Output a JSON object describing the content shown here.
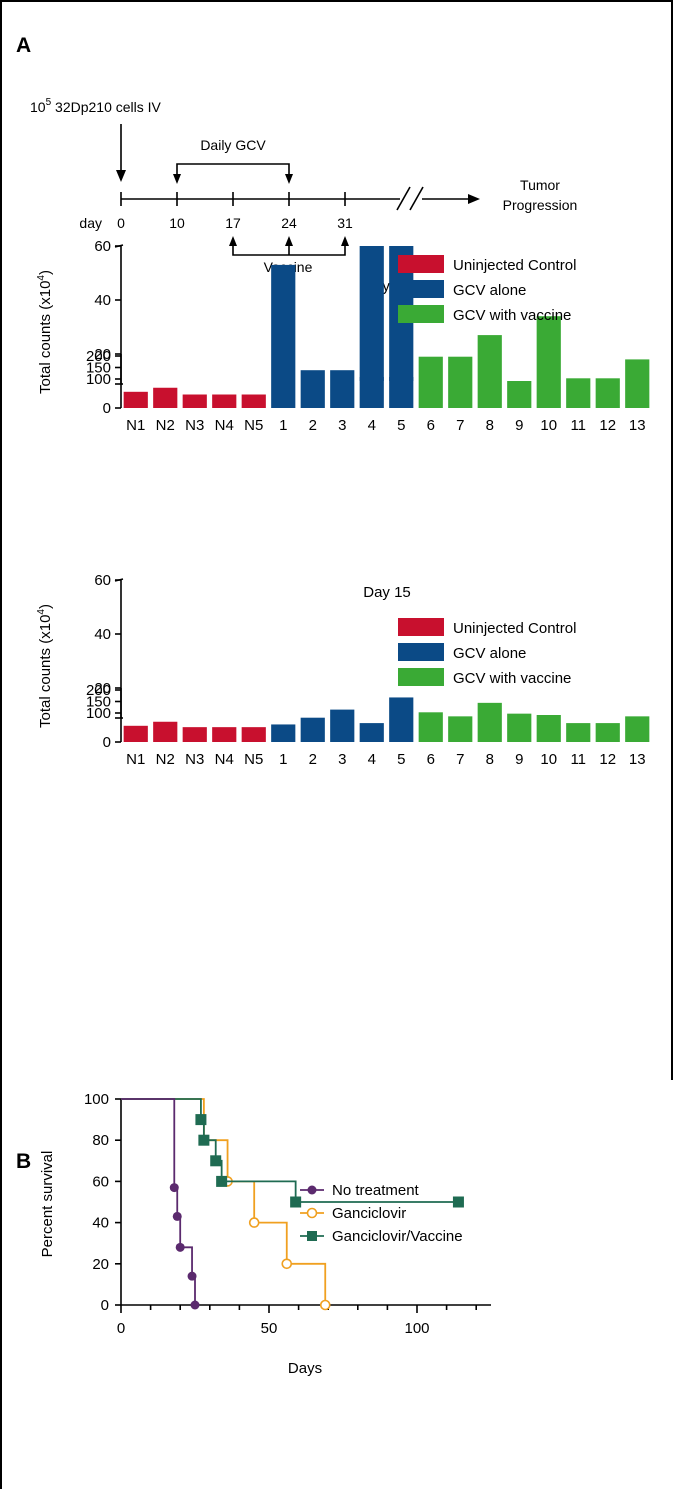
{
  "panels": {
    "a": "A",
    "b": "B"
  },
  "timeline": {
    "injection_base": "10",
    "injection_exp": "5",
    "injection_rest": " 32Dp210 cells IV",
    "gcv_label": "Daily GCV",
    "day_label": "day",
    "days": [
      "0",
      "10",
      "17",
      "24",
      "31"
    ],
    "vaccine_label": "Vaccine",
    "end_line1": "Tumor",
    "end_line2": "Progression"
  },
  "chart_data": [
    {
      "type": "bar",
      "title": "Day 10",
      "ylabel_main": "Total counts (x10",
      "ylabel_exp": "4",
      "ylabel_close": ")",
      "axis_break": true,
      "y_lower_ticks": [
        0,
        20,
        40,
        60
      ],
      "y_upper_ticks": [
        100,
        150,
        200
      ],
      "categories": [
        "N1",
        "N2",
        "N3",
        "N4",
        "N5",
        "1",
        "2",
        "3",
        "4",
        "5",
        "6",
        "7",
        "8",
        "9",
        "10",
        "11",
        "12",
        "13"
      ],
      "groups": [
        "Uninjected Control",
        "Uninjected Control",
        "Uninjected Control",
        "Uninjected Control",
        "Uninjected Control",
        "GCV alone",
        "GCV alone",
        "GCV alone",
        "GCV alone",
        "GCV alone",
        "GCV with vaccine",
        "GCV with vaccine",
        "GCV with vaccine",
        "GCV with vaccine",
        "GCV with vaccine",
        "GCV with vaccine",
        "GCV with vaccine",
        "GCV with vaccine"
      ],
      "values": [
        6,
        7.5,
        5,
        5,
        5,
        53,
        14,
        14,
        100,
        100,
        19,
        19,
        27,
        10,
        34,
        11,
        11,
        18
      ],
      "legend": [
        {
          "name": "Uninjected Control",
          "color": "#c8102e"
        },
        {
          "name": "GCV alone",
          "color": "#0b4a86"
        },
        {
          "name": "GCV with vaccine",
          "color": "#3aaa35"
        }
      ]
    },
    {
      "type": "bar",
      "title": "Day 15",
      "ylabel_main": "Total counts (x10",
      "ylabel_exp": "4",
      "ylabel_close": ")",
      "axis_break": true,
      "y_lower_ticks": [
        0,
        20,
        40,
        60
      ],
      "y_upper_ticks": [
        100,
        150,
        200
      ],
      "categories": [
        "N1",
        "N2",
        "N3",
        "N4",
        "N5",
        "1",
        "2",
        "3",
        "4",
        "5",
        "6",
        "7",
        "8",
        "9",
        "10",
        "11",
        "12",
        "13"
      ],
      "groups": [
        "Uninjected Control",
        "Uninjected Control",
        "Uninjected Control",
        "Uninjected Control",
        "Uninjected Control",
        "GCV alone",
        "GCV alone",
        "GCV alone",
        "GCV alone",
        "GCV alone",
        "GCV with vaccine",
        "GCV with vaccine",
        "GCV with vaccine",
        "GCV with vaccine",
        "GCV with vaccine",
        "GCV with vaccine",
        "GCV with vaccine",
        "GCV with vaccine"
      ],
      "values": [
        6,
        7.5,
        5.5,
        5.5,
        5.5,
        6.5,
        9,
        12,
        7,
        16.5,
        11,
        9.5,
        14.5,
        10.5,
        10,
        7,
        7,
        9.5
      ],
      "legend": [
        {
          "name": "Uninjected Control",
          "color": "#c8102e"
        },
        {
          "name": "GCV alone",
          "color": "#0b4a86"
        },
        {
          "name": "GCV with vaccine",
          "color": "#3aaa35"
        }
      ]
    },
    {
      "type": "line",
      "subtype": "step",
      "xlabel": "Days",
      "ylabel": "Percent survival",
      "xlim": [
        0,
        125
      ],
      "ylim": [
        0,
        100
      ],
      "x_ticks": [
        0,
        50,
        100
      ],
      "y_ticks": [
        0,
        20,
        40,
        60,
        80,
        100
      ],
      "series": [
        {
          "name": "No treatment",
          "color": "#5b2a6e",
          "marker": "filled-circle",
          "x": [
            0,
            18,
            19,
            20,
            24,
            25
          ],
          "y": [
            100,
            57,
            43,
            28,
            14,
            0
          ]
        },
        {
          "name": "Ganciclovir",
          "color": "#f0a020",
          "marker": "open-circle",
          "x": [
            0,
            28,
            36,
            45,
            56,
            69
          ],
          "y": [
            100,
            80,
            60,
            40,
            20,
            0
          ]
        },
        {
          "name": "Ganciclovir/Vaccine",
          "color": "#1f6b52",
          "marker": "filled-square",
          "x": [
            0,
            27,
            28,
            32,
            34,
            59,
            114
          ],
          "y": [
            100,
            90,
            80,
            70,
            60,
            50,
            50
          ]
        }
      ]
    }
  ]
}
